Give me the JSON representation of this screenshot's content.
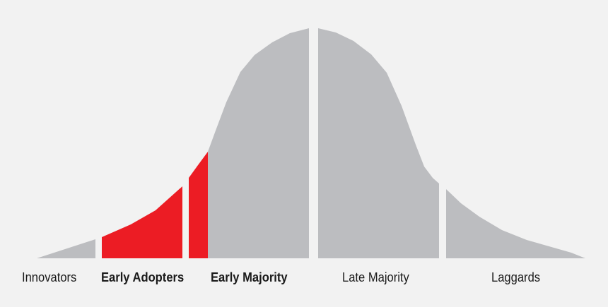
{
  "diagram": {
    "type": "adoption-bell-curve",
    "colors": {
      "background": "#f2f2f2",
      "curve": "#bcbdc0",
      "highlight": "#ec1c24",
      "text": "#1a1a1a"
    },
    "segments": [
      {
        "label": "Innovators",
        "bold": false,
        "highlighted": false
      },
      {
        "label": "Early Adopters",
        "bold": true,
        "highlighted": true
      },
      {
        "label": "Early Majority",
        "bold": true,
        "highlighted": "partial"
      },
      {
        "label": "Late Majority",
        "bold": false,
        "highlighted": false
      },
      {
        "label": "Laggards",
        "bold": false,
        "highlighted": false
      }
    ]
  }
}
